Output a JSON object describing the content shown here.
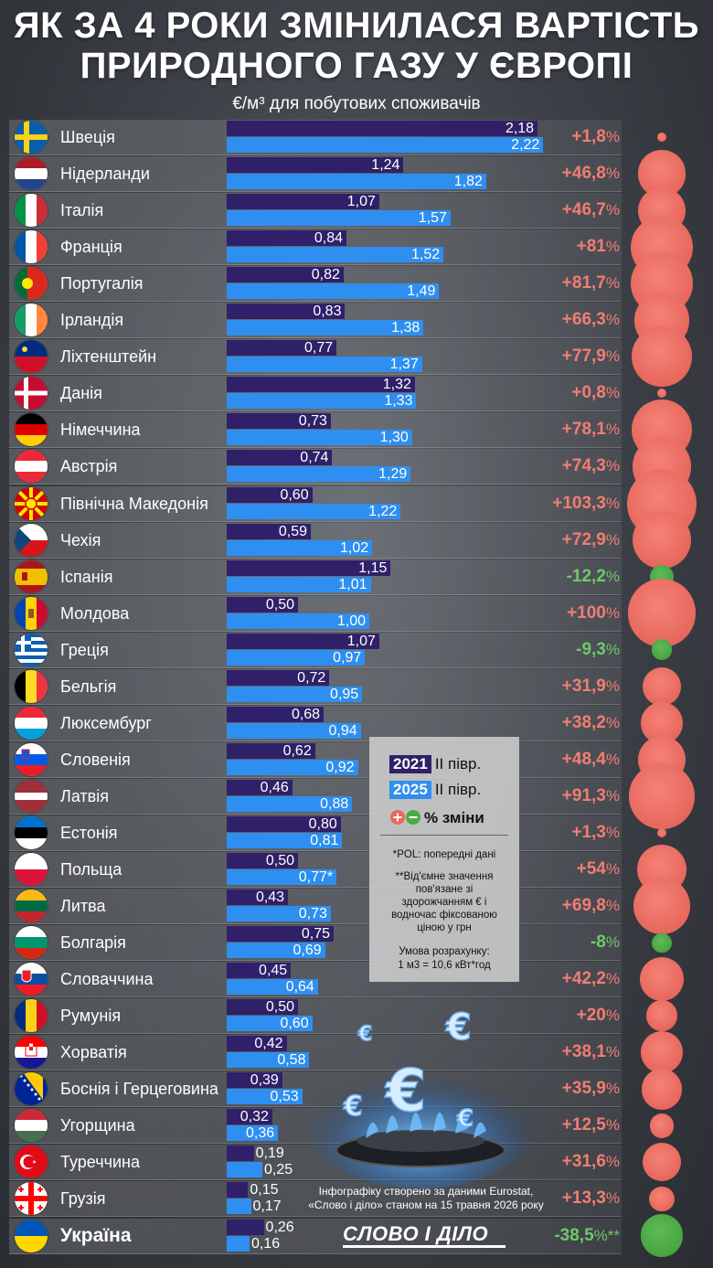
{
  "header": {
    "title_line1": "ЯК ЗА 4 РОКИ ЗМІНИЛАСЯ ВАРТІСТЬ",
    "title_line2": "ПРИРОДНОГО ГАЗУ У ЄВРОПІ",
    "subtitle": "€/м³ для побутових споживачів"
  },
  "legend": {
    "year1": "2021",
    "period1": "ІІ півр.",
    "year2": "2025",
    "period2": "ІІ півр.",
    "change_label": "% зміни",
    "note_pol": "*POL: попередні дані",
    "note_negative": "**Від'ємне значення пов'язане зі здорожчанням € і водночас фіксованою ціною у грн",
    "note_calc_title": "Умова розрахунку:",
    "note_calc": "1 м3 = 10,6 кВт*год",
    "color_2021": "#2f2069",
    "color_2025": "#2e8ff0",
    "color_positive": "#f37d72",
    "color_negative": "#6ec96a"
  },
  "footer": {
    "credit_line1": "Інфографіку створено за даними Eurostat,",
    "credit_line2": "«Слово і діло» станом на 15 травня 2026 року",
    "logo": "СЛОВО І ДІЛО"
  },
  "chart_data": {
    "type": "bar",
    "orientation": "horizontal",
    "unit": "€/м³",
    "series": [
      {
        "name": "2021 ІІ півр.",
        "color": "#2f2069"
      },
      {
        "name": "2025 ІІ півр.",
        "color": "#2e8ff0"
      }
    ],
    "rows": [
      {
        "country": "Швеція",
        "flag": "sweden",
        "v2021": 2.18,
        "v2025": 2.22,
        "l2021": "2,18",
        "l2025": "2,22",
        "change": 1.8,
        "change_label": "+1,8"
      },
      {
        "country": "Нідерланди",
        "flag": "netherlands",
        "v2021": 1.24,
        "v2025": 1.82,
        "l2021": "1,24",
        "l2025": "1,82",
        "change": 46.8,
        "change_label": "+46,8"
      },
      {
        "country": "Італія",
        "flag": "italy",
        "v2021": 1.07,
        "v2025": 1.57,
        "l2021": "1,07",
        "l2025": "1,57",
        "change": 46.7,
        "change_label": "+46,7"
      },
      {
        "country": "Франція",
        "flag": "france",
        "v2021": 0.84,
        "v2025": 1.52,
        "l2021": "0,84",
        "l2025": "1,52",
        "change": 81,
        "change_label": "+81"
      },
      {
        "country": "Португалія",
        "flag": "portugal",
        "v2021": 0.82,
        "v2025": 1.49,
        "l2021": "0,82",
        "l2025": "1,49",
        "change": 81.7,
        "change_label": "+81,7"
      },
      {
        "country": "Ірландія",
        "flag": "ireland",
        "v2021": 0.83,
        "v2025": 1.38,
        "l2021": "0,83",
        "l2025": "1,38",
        "change": 66.3,
        "change_label": "+66,3"
      },
      {
        "country": "Ліхтенштейн",
        "flag": "liechtenstein",
        "v2021": 0.77,
        "v2025": 1.37,
        "l2021": "0,77",
        "l2025": "1,37",
        "change": 77.9,
        "change_label": "+77,9"
      },
      {
        "country": "Данія",
        "flag": "denmark",
        "v2021": 1.32,
        "v2025": 1.33,
        "l2021": "1,32",
        "l2025": "1,33",
        "change": 0.8,
        "change_label": "+0,8"
      },
      {
        "country": "Німеччина",
        "flag": "germany",
        "v2021": 0.73,
        "v2025": 1.3,
        "l2021": "0,73",
        "l2025": "1,30",
        "change": 78.1,
        "change_label": "+78,1"
      },
      {
        "country": "Австрія",
        "flag": "austria",
        "v2021": 0.74,
        "v2025": 1.29,
        "l2021": "0,74",
        "l2025": "1,29",
        "change": 74.3,
        "change_label": "+74,3"
      },
      {
        "country": "Північна Македонія",
        "flag": "north-macedonia",
        "v2021": 0.6,
        "v2025": 1.22,
        "l2021": "0,60",
        "l2025": "1,22",
        "change": 103.3,
        "change_label": "+103,3"
      },
      {
        "country": "Чехія",
        "flag": "czechia",
        "v2021": 0.59,
        "v2025": 1.02,
        "l2021": "0,59",
        "l2025": "1,02",
        "change": 72.9,
        "change_label": "+72,9"
      },
      {
        "country": "Іспанія",
        "flag": "spain",
        "v2021": 1.15,
        "v2025": 1.01,
        "l2021": "1,15",
        "l2025": "1,01",
        "change": -12.2,
        "change_label": "-12,2"
      },
      {
        "country": "Молдова",
        "flag": "moldova",
        "v2021": 0.5,
        "v2025": 1.0,
        "l2021": "0,50",
        "l2025": "1,00",
        "change": 100,
        "change_label": "+100"
      },
      {
        "country": "Греція",
        "flag": "greece",
        "v2021": 1.07,
        "v2025": 0.97,
        "l2021": "1,07",
        "l2025": "0,97",
        "change": -9.3,
        "change_label": "-9,3"
      },
      {
        "country": "Бельгія",
        "flag": "belgium",
        "v2021": 0.72,
        "v2025": 0.95,
        "l2021": "0,72",
        "l2025": "0,95",
        "change": 31.9,
        "change_label": "+31,9"
      },
      {
        "country": "Люксембург",
        "flag": "luxembourg",
        "v2021": 0.68,
        "v2025": 0.94,
        "l2021": "0,68",
        "l2025": "0,94",
        "change": 38.2,
        "change_label": "+38,2"
      },
      {
        "country": "Словенія",
        "flag": "slovenia",
        "v2021": 0.62,
        "v2025": 0.92,
        "l2021": "0,62",
        "l2025": "0,92",
        "change": 48.4,
        "change_label": "+48,4"
      },
      {
        "country": "Латвія",
        "flag": "latvia",
        "v2021": 0.46,
        "v2025": 0.88,
        "l2021": "0,46",
        "l2025": "0,88",
        "change": 91.3,
        "change_label": "+91,3"
      },
      {
        "country": "Естонія",
        "flag": "estonia",
        "v2021": 0.8,
        "v2025": 0.81,
        "l2021": "0,80",
        "l2025": "0,81",
        "change": 1.3,
        "change_label": "+1,3"
      },
      {
        "country": "Польща",
        "flag": "poland",
        "v2021": 0.5,
        "v2025": 0.77,
        "l2021": "0,50",
        "l2025": "0,77*",
        "change": 54,
        "change_label": "+54"
      },
      {
        "country": "Литва",
        "flag": "lithuania",
        "v2021": 0.43,
        "v2025": 0.73,
        "l2021": "0,43",
        "l2025": "0,73",
        "change": 69.8,
        "change_label": "+69,8"
      },
      {
        "country": "Болгарія",
        "flag": "bulgaria",
        "v2021": 0.75,
        "v2025": 0.69,
        "l2021": "0,75",
        "l2025": "0,69",
        "change": -8,
        "change_label": "-8"
      },
      {
        "country": "Словаччина",
        "flag": "slovakia",
        "v2021": 0.45,
        "v2025": 0.64,
        "l2021": "0,45",
        "l2025": "0,64",
        "change": 42.2,
        "change_label": "+42,2"
      },
      {
        "country": "Румунія",
        "flag": "romania",
        "v2021": 0.5,
        "v2025": 0.6,
        "l2021": "0,50",
        "l2025": "0,60",
        "change": 20,
        "change_label": "+20"
      },
      {
        "country": "Хорватія",
        "flag": "croatia",
        "v2021": 0.42,
        "v2025": 0.58,
        "l2021": "0,42",
        "l2025": "0,58",
        "change": 38.1,
        "change_label": "+38,1"
      },
      {
        "country": "Боснія і Герцеговина",
        "flag": "bosnia",
        "v2021": 0.39,
        "v2025": 0.53,
        "l2021": "0,39",
        "l2025": "0,53",
        "change": 35.9,
        "change_label": "+35,9"
      },
      {
        "country": "Угорщина",
        "flag": "hungary",
        "v2021": 0.32,
        "v2025": 0.36,
        "l2021": "0,32",
        "l2025": "0,36",
        "change": 12.5,
        "change_label": "+12,5"
      },
      {
        "country": "Туреччина",
        "flag": "turkey",
        "v2021": 0.19,
        "v2025": 0.25,
        "l2021": "0,19",
        "l2025": "0,25",
        "change": 31.6,
        "change_label": "+31,6"
      },
      {
        "country": "Грузія",
        "flag": "georgia",
        "v2021": 0.15,
        "v2025": 0.17,
        "l2021": "0,15",
        "l2025": "0,17",
        "change": 13.3,
        "change_label": "+13,3"
      },
      {
        "country": "Україна",
        "flag": "ukraine",
        "v2021": 0.26,
        "v2025": 0.16,
        "l2021": "0,26",
        "l2025": "0,16",
        "change": -38.5,
        "change_label": "-38,5",
        "change_suffix": "**",
        "highlight": true
      }
    ]
  }
}
